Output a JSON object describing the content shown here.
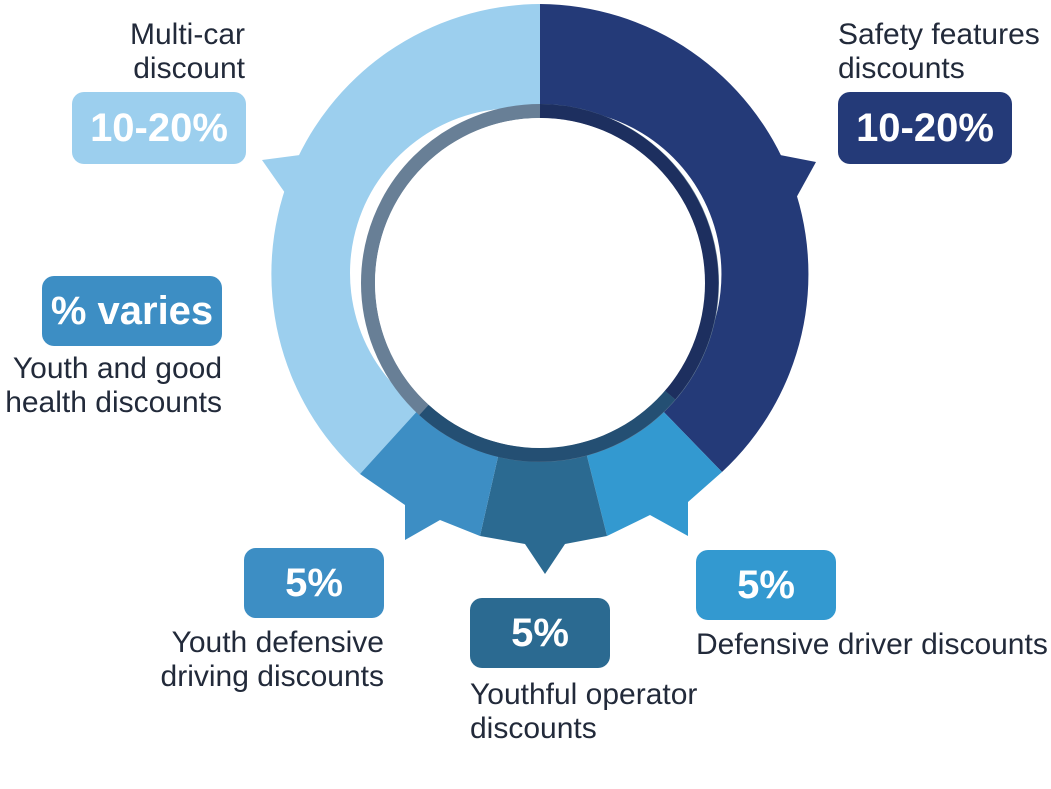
{
  "colors": {
    "light_blue": "#9ccfee",
    "navy": "#243a78",
    "medium_blue": "#3d8ec4",
    "steel_blue": "#2b6a91",
    "bright_blue": "#3399d0",
    "inner_ring_light": "#687f96",
    "inner_ring_dark": "#1d2f5f",
    "text": "#222a3a"
  },
  "segments": [
    {
      "id": "safety",
      "name": "Safety features discounts",
      "badge": "10-20%",
      "label_lines": [
        "Safety features",
        "discounts"
      ],
      "color": "#243a78"
    },
    {
      "id": "defensive-driver",
      "name": "Defensive driver discounts",
      "badge": "5%",
      "label_lines": [
        "Defensive driver discounts"
      ],
      "color": "#3399d0"
    },
    {
      "id": "youthful-operator",
      "name": "Youthful operator discounts",
      "badge": "5%",
      "label_lines": [
        "Youthful operator",
        "discounts"
      ],
      "color": "#2b6a91"
    },
    {
      "id": "youth-defensive",
      "name": "Youth defensive driving discounts",
      "badge": "5%",
      "label_lines": [
        "Youth defensive",
        "driving discounts"
      ],
      "color": "#3d8ec4"
    },
    {
      "id": "youth-health",
      "name": "Youth and good health discounts",
      "badge": "% varies",
      "label_lines": [
        "Youth and good",
        "health discounts"
      ],
      "color": "#3d8ec4"
    },
    {
      "id": "multi-car",
      "name": "Multi-car discount",
      "badge": "10-20%",
      "label_lines": [
        "Multi-car",
        "discount"
      ],
      "color": "#9ccfee"
    }
  ]
}
